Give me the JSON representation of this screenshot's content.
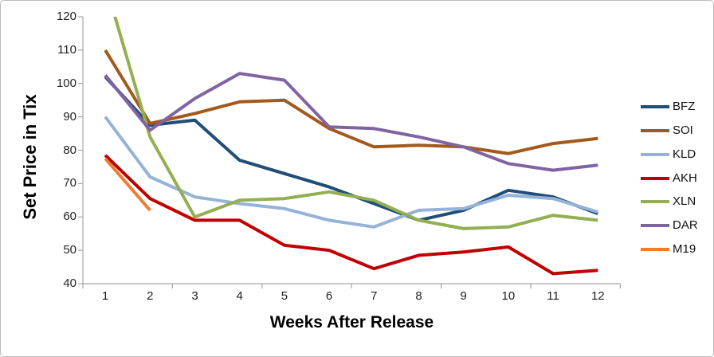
{
  "window": {
    "background": "#ffffff",
    "border_color": "#bdbdbd",
    "axis_line_color": "#a6a6a6",
    "text_color": "#1f1f1f"
  },
  "chart_data": {
    "type": "line",
    "title": "",
    "xlabel": "Weeks After Release",
    "ylabel": "Set Price in Tix",
    "x": [
      1,
      2,
      3,
      4,
      5,
      6,
      7,
      8,
      9,
      10,
      11,
      12
    ],
    "y_ticks": [
      40,
      50,
      60,
      70,
      80,
      90,
      100,
      110,
      120
    ],
    "ylim": [
      40,
      120
    ],
    "grid": false,
    "legend_position": "right",
    "series": [
      {
        "name": "BFZ",
        "color": "#1F4E79",
        "values": [
          102,
          87.5,
          89,
          77,
          73,
          69,
          64,
          59,
          62,
          68,
          66,
          61
        ]
      },
      {
        "name": "SOI",
        "color": "#A4591C",
        "values": [
          110,
          88,
          91,
          94.5,
          95,
          86.5,
          81,
          81.5,
          81,
          79,
          82,
          83.5
        ]
      },
      {
        "name": "KLD",
        "color": "#95B3D7",
        "values": [
          90,
          72,
          66,
          64,
          62.5,
          59,
          57,
          62,
          62.5,
          66.5,
          65.5,
          61.5
        ]
      },
      {
        "name": "AKH",
        "color": "#C00000",
        "values": [
          78.5,
          65.5,
          59,
          59,
          51.5,
          50,
          44.5,
          48.5,
          49.5,
          51,
          43,
          44
        ]
      },
      {
        "name": "XLN",
        "color": "#94AF52",
        "values": [
          130,
          84,
          60,
          65,
          65.5,
          67.5,
          65,
          59,
          56.5,
          57,
          60.5,
          59
        ]
      },
      {
        "name": "DAR",
        "color": "#8064A2",
        "values": [
          102.5,
          86,
          95.5,
          103,
          101,
          87,
          86.5,
          84,
          81,
          76,
          74,
          75.5
        ]
      },
      {
        "name": "M19",
        "color": "#ED7D31",
        "values": [
          77.5,
          62,
          null,
          null,
          null,
          null,
          null,
          null,
          null,
          null,
          null,
          null
        ]
      }
    ]
  }
}
